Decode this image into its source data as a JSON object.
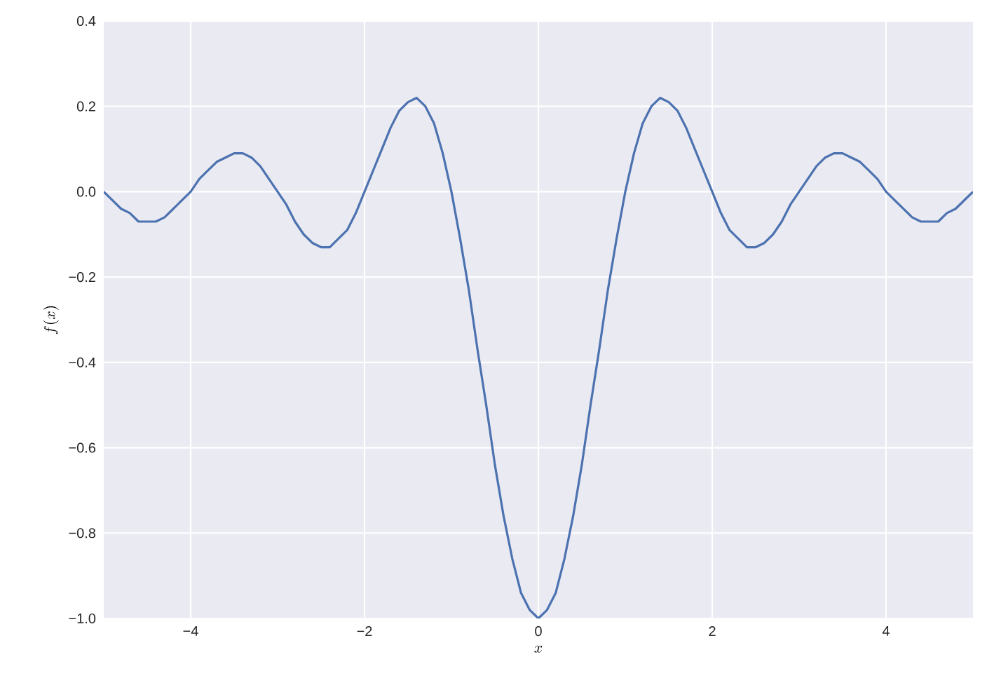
{
  "chart_data": {
    "type": "line",
    "xlabel": "x",
    "ylabel": "f(x)",
    "color": "#4c72b0",
    "grid": true,
    "xlim": [
      -5,
      5
    ],
    "ylim": [
      -1.0,
      0.4
    ],
    "xticks": [
      {
        "value": -4,
        "label": "−4"
      },
      {
        "value": -2,
        "label": "−2"
      },
      {
        "value": 0,
        "label": "0"
      },
      {
        "value": 2,
        "label": "2"
      },
      {
        "value": 4,
        "label": "4"
      }
    ],
    "yticks": [
      {
        "value": -1.0,
        "label": "−1.0"
      },
      {
        "value": -0.8,
        "label": "−0.8"
      },
      {
        "value": -0.6,
        "label": "−0.6"
      },
      {
        "value": -0.4,
        "label": "−0.4"
      },
      {
        "value": -0.2,
        "label": "−0.2"
      },
      {
        "value": 0.0,
        "label": "0.0"
      },
      {
        "value": 0.2,
        "label": "0.2"
      },
      {
        "value": 0.4,
        "label": "0.4"
      }
    ],
    "x": [
      -5.0,
      -4.9,
      -4.8,
      -4.7,
      -4.6,
      -4.5,
      -4.4,
      -4.3,
      -4.2,
      -4.1,
      -4.0,
      -3.9,
      -3.8,
      -3.7,
      -3.6,
      -3.5,
      -3.4,
      -3.3,
      -3.2,
      -3.1,
      -3.0,
      -2.9,
      -2.8,
      -2.7,
      -2.6,
      -2.5,
      -2.4,
      -2.3,
      -2.2,
      -2.1,
      -2.0,
      -1.9,
      -1.8,
      -1.7,
      -1.6,
      -1.5,
      -1.4,
      -1.3,
      -1.2,
      -1.1,
      -1.0,
      -0.9,
      -0.8,
      -0.7,
      -0.6,
      -0.5,
      -0.4,
      -0.3,
      -0.2,
      -0.1,
      0.0,
      0.1,
      0.2,
      0.3,
      0.4,
      0.5,
      0.6,
      0.7,
      0.8,
      0.9,
      1.0,
      1.1,
      1.2,
      1.3,
      1.4,
      1.5,
      1.6,
      1.7,
      1.8,
      1.9,
      2.0,
      2.1,
      2.2,
      2.3,
      2.4,
      2.5,
      2.6,
      2.7,
      2.8,
      2.9,
      3.0,
      3.1,
      3.2,
      3.3,
      3.4,
      3.5,
      3.6,
      3.7,
      3.8,
      3.9,
      4.0,
      4.1,
      4.2,
      4.3,
      4.4,
      4.5,
      4.6,
      4.7,
      4.8,
      4.9,
      5.0
    ],
    "values": [
      0.0,
      -0.02,
      -0.04,
      -0.05,
      -0.07,
      -0.07,
      -0.07,
      -0.06,
      -0.04,
      -0.02,
      0.0,
      0.03,
      0.05,
      0.07,
      0.08,
      0.09,
      0.09,
      0.08,
      0.06,
      0.03,
      0.0,
      -0.03,
      -0.07,
      -0.1,
      -0.12,
      -0.13,
      -0.13,
      -0.11,
      -0.09,
      -0.05,
      0.0,
      0.05,
      0.1,
      0.15,
      0.19,
      0.21,
      0.22,
      0.2,
      0.16,
      0.09,
      0.0,
      -0.11,
      -0.23,
      -0.37,
      -0.5,
      -0.64,
      -0.76,
      -0.86,
      -0.94,
      -0.98,
      -1.0,
      -0.98,
      -0.94,
      -0.86,
      -0.76,
      -0.64,
      -0.5,
      -0.37,
      -0.23,
      -0.11,
      0.0,
      0.09,
      0.16,
      0.2,
      0.22,
      0.21,
      0.19,
      0.15,
      0.1,
      0.05,
      0.0,
      -0.05,
      -0.09,
      -0.11,
      -0.13,
      -0.13,
      -0.12,
      -0.1,
      -0.07,
      -0.03,
      0.0,
      0.03,
      0.06,
      0.08,
      0.09,
      0.09,
      0.08,
      0.07,
      0.05,
      0.03,
      0.0,
      -0.02,
      -0.04,
      -0.06,
      -0.07,
      -0.07,
      -0.07,
      -0.05,
      -0.04,
      -0.02,
      0.0
    ]
  }
}
